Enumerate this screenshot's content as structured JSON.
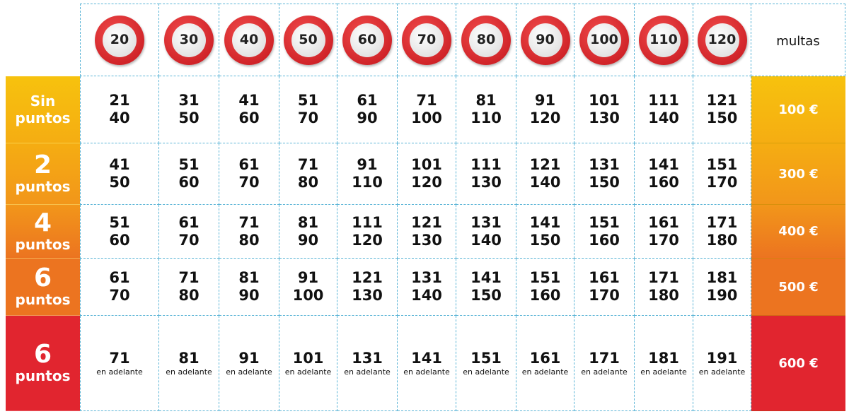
{
  "header": {
    "speeds": [
      "20",
      "30",
      "40",
      "50",
      "60",
      "70",
      "80",
      "90",
      "100",
      "110",
      "120"
    ],
    "fines_label": "multas"
  },
  "rows": [
    {
      "label_big": "",
      "label_small": "Sin puntos",
      "fine": "100 €",
      "bg": "#f7c20e",
      "values": [
        [
          "21",
          "40"
        ],
        [
          "31",
          "50"
        ],
        [
          "41",
          "60"
        ],
        [
          "51",
          "70"
        ],
        [
          "61",
          "90"
        ],
        [
          "71",
          "100"
        ],
        [
          "81",
          "110"
        ],
        [
          "91",
          "120"
        ],
        [
          "101",
          "130"
        ],
        [
          "111",
          "140"
        ],
        [
          "121",
          "150"
        ]
      ]
    },
    {
      "label_big": "2",
      "label_small": "puntos",
      "fine": "300 €",
      "bg": "#f5ad12",
      "values": [
        [
          "41",
          "50"
        ],
        [
          "51",
          "60"
        ],
        [
          "61",
          "70"
        ],
        [
          "71",
          "80"
        ],
        [
          "91",
          "110"
        ],
        [
          "101",
          "120"
        ],
        [
          "111",
          "130"
        ],
        [
          "121",
          "140"
        ],
        [
          "131",
          "150"
        ],
        [
          "141",
          "160"
        ],
        [
          "151",
          "170"
        ]
      ]
    },
    {
      "label_big": "4",
      "label_small": "puntos",
      "fine": "400 €",
      "bg": "#f2961a",
      "values": [
        [
          "51",
          "60"
        ],
        [
          "61",
          "70"
        ],
        [
          "71",
          "80"
        ],
        [
          "81",
          "90"
        ],
        [
          "111",
          "120"
        ],
        [
          "121",
          "130"
        ],
        [
          "131",
          "140"
        ],
        [
          "141",
          "150"
        ],
        [
          "151",
          "160"
        ],
        [
          "161",
          "170"
        ],
        [
          "171",
          "180"
        ]
      ]
    },
    {
      "label_big": "6",
      "label_small": "puntos",
      "fine": "500 €",
      "bg": "#ec7420",
      "values": [
        [
          "61",
          "70"
        ],
        [
          "71",
          "80"
        ],
        [
          "81",
          "90"
        ],
        [
          "91",
          "100"
        ],
        [
          "121",
          "130"
        ],
        [
          "131",
          "140"
        ],
        [
          "141",
          "150"
        ],
        [
          "151",
          "160"
        ],
        [
          "161",
          "170"
        ],
        [
          "171",
          "180"
        ],
        [
          "181",
          "190"
        ]
      ]
    },
    {
      "label_big": "6",
      "label_small": "puntos",
      "fine": "600 €",
      "bg": "#e1252f",
      "values": [
        [
          "71",
          "en adelante"
        ],
        [
          "81",
          "en adelante"
        ],
        [
          "91",
          "en adelante"
        ],
        [
          "101",
          "en adelante"
        ],
        [
          "131",
          "en adelante"
        ],
        [
          "141",
          "en adelante"
        ],
        [
          "151",
          "en adelante"
        ],
        [
          "161",
          "en adelante"
        ],
        [
          "171",
          "en adelante"
        ],
        [
          "181",
          "en adelante"
        ],
        [
          "191",
          "en adelante"
        ]
      ]
    }
  ]
}
